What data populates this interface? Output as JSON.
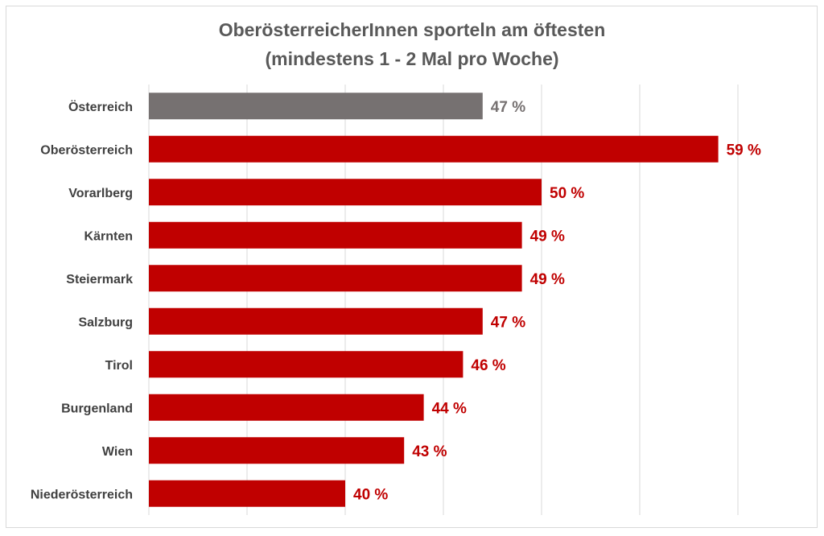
{
  "chart_data": {
    "type": "bar",
    "orientation": "horizontal",
    "title": "OberösterreicherInnen sporteln am öftesten",
    "subtitle": "(mindestens 1 - 2 Mal pro Woche)",
    "categories": [
      "Österreich",
      "Oberösterreich",
      "Vorarlberg",
      "Kärnten",
      "Steiermark",
      "Salzburg",
      "Tirol",
      "Burgenland",
      "Wien",
      "Niederösterreich"
    ],
    "values": [
      47,
      59,
      50,
      49,
      49,
      47,
      46,
      44,
      43,
      40
    ],
    "data_labels": [
      "47 %",
      "59 %",
      "50 %",
      "49 %",
      "49 %",
      "47 %",
      "46 %",
      "44 %",
      "43 %",
      "40 %"
    ],
    "xlim": [
      30,
      60
    ],
    "x_grid_step": 5,
    "grid": true,
    "x_tick_labels_visible": false,
    "legend": "none",
    "colors": {
      "highlight": "#767171",
      "bars": "#c00000",
      "highlight_label": "#767171",
      "label": "#c00000",
      "grid": "#d9d9d9"
    }
  }
}
